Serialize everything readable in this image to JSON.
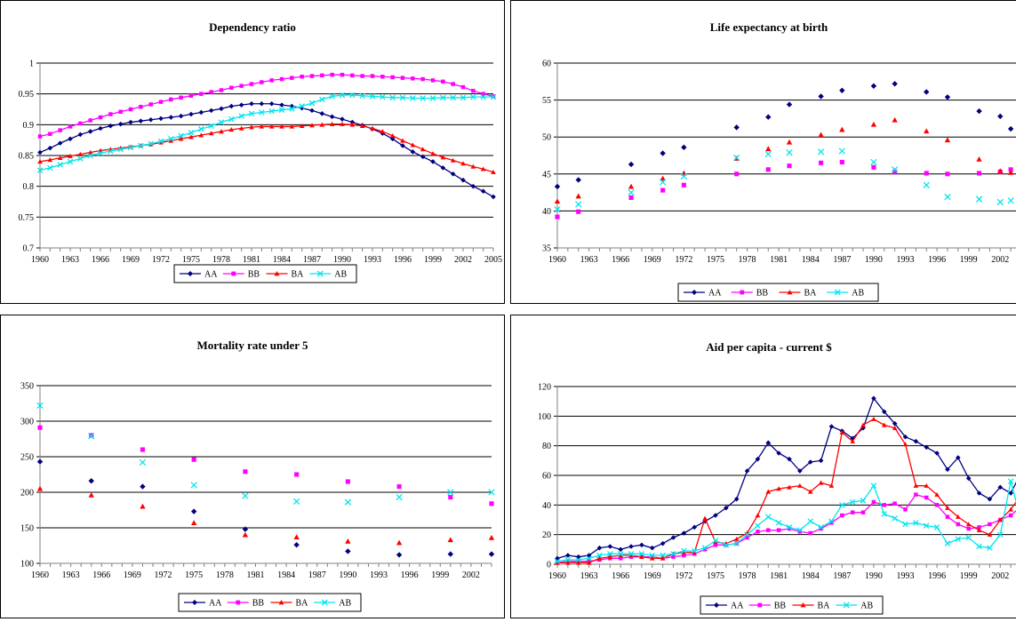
{
  "legend_items": [
    "AA",
    "BB",
    "BA",
    "AB"
  ],
  "series_colors": {
    "AA": "#000080",
    "BB": "#ff00ff",
    "BA": "#ff0000",
    "AB": "#00e5ee"
  },
  "series_markers": {
    "AA": "diamond",
    "BB": "square",
    "BA": "triangle",
    "AB": "x"
  },
  "chart_data": [
    {
      "type": "line",
      "title": "Dependency ratio",
      "xlabel": "",
      "ylabel": "",
      "xlim": [
        1960,
        2005
      ],
      "ylim": [
        0.7,
        1.0
      ],
      "yticks": [
        0.7,
        0.75,
        0.8,
        0.85,
        0.9,
        0.95,
        1
      ],
      "ytick_labels": [
        "0.7",
        "0.75",
        "0.8",
        "0.85",
        "0.9",
        "0.95",
        "1"
      ],
      "xticks": [
        1960,
        1963,
        1966,
        1969,
        1972,
        1975,
        1978,
        1981,
        1984,
        1987,
        1990,
        1993,
        1996,
        1999,
        2002,
        2005
      ],
      "grid": "horizontal",
      "legend": "bottom",
      "x": [
        1960,
        1961,
        1962,
        1963,
        1964,
        1965,
        1966,
        1967,
        1968,
        1969,
        1970,
        1971,
        1972,
        1973,
        1974,
        1975,
        1976,
        1977,
        1978,
        1979,
        1980,
        1981,
        1982,
        1983,
        1984,
        1985,
        1986,
        1987,
        1988,
        1989,
        1990,
        1991,
        1992,
        1993,
        1994,
        1995,
        1996,
        1997,
        1998,
        1999,
        2000,
        2001,
        2002,
        2003,
        2004,
        2005
      ],
      "series": [
        {
          "name": "AA",
          "values": [
            0.855,
            0.862,
            0.87,
            0.877,
            0.884,
            0.889,
            0.894,
            0.898,
            0.901,
            0.904,
            0.906,
            0.908,
            0.91,
            0.912,
            0.914,
            0.917,
            0.92,
            0.923,
            0.926,
            0.93,
            0.932,
            0.934,
            0.934,
            0.934,
            0.932,
            0.93,
            0.927,
            0.923,
            0.918,
            0.913,
            0.909,
            0.904,
            0.899,
            0.893,
            0.886,
            0.877,
            0.866,
            0.856,
            0.848,
            0.84,
            0.83,
            0.82,
            0.81,
            0.8,
            0.792,
            0.783
          ]
        },
        {
          "name": "BB",
          "values": [
            0.881,
            0.885,
            0.891,
            0.897,
            0.902,
            0.907,
            0.912,
            0.917,
            0.921,
            0.925,
            0.929,
            0.933,
            0.937,
            0.941,
            0.944,
            0.947,
            0.95,
            0.953,
            0.956,
            0.96,
            0.963,
            0.966,
            0.969,
            0.972,
            0.974,
            0.976,
            0.978,
            0.979,
            0.98,
            0.981,
            0.981,
            0.98,
            0.979,
            0.979,
            0.978,
            0.977,
            0.976,
            0.975,
            0.974,
            0.972,
            0.97,
            0.966,
            0.961,
            0.955,
            0.95,
            0.946
          ]
        },
        {
          "name": "BA",
          "values": [
            0.84,
            0.843,
            0.846,
            0.849,
            0.852,
            0.855,
            0.858,
            0.86,
            0.862,
            0.864,
            0.866,
            0.868,
            0.871,
            0.874,
            0.877,
            0.88,
            0.883,
            0.886,
            0.889,
            0.892,
            0.894,
            0.896,
            0.897,
            0.897,
            0.897,
            0.897,
            0.898,
            0.899,
            0.9,
            0.901,
            0.901,
            0.9,
            0.898,
            0.894,
            0.889,
            0.882,
            0.874,
            0.867,
            0.86,
            0.853,
            0.847,
            0.842,
            0.837,
            0.832,
            0.828,
            0.823
          ]
        },
        {
          "name": "AB",
          "values": [
            0.826,
            0.83,
            0.835,
            0.84,
            0.845,
            0.85,
            0.854,
            0.857,
            0.86,
            0.863,
            0.866,
            0.869,
            0.873,
            0.877,
            0.882,
            0.887,
            0.893,
            0.898,
            0.904,
            0.909,
            0.914,
            0.918,
            0.92,
            0.922,
            0.924,
            0.926,
            0.93,
            0.935,
            0.941,
            0.946,
            0.948,
            0.948,
            0.947,
            0.946,
            0.945,
            0.944,
            0.944,
            0.943,
            0.943,
            0.943,
            0.944,
            0.944,
            0.944,
            0.945,
            0.945,
            0.945
          ]
        }
      ]
    },
    {
      "type": "scatter",
      "title": "Life expectancy at birth",
      "xlabel": "",
      "ylabel": "",
      "xlim": [
        1960,
        2004
      ],
      "ylim": [
        35,
        60
      ],
      "yticks": [
        35,
        40,
        45,
        50,
        55,
        60
      ],
      "ytick_labels": [
        "35",
        "40",
        "45",
        "50",
        "55",
        "60"
      ],
      "xticks": [
        1960,
        1963,
        1966,
        1969,
        1972,
        1975,
        1978,
        1981,
        1984,
        1987,
        1990,
        1993,
        1996,
        1999,
        2002
      ],
      "grid": "horizontal",
      "legend": "bottom",
      "x": [
        1960,
        1962,
        1967,
        1970,
        1972,
        1977,
        1980,
        1982,
        1985,
        1987,
        1990,
        1992,
        1995,
        1997,
        2000,
        2002,
        2003,
        2004
      ],
      "series": [
        {
          "name": "AA",
          "values": [
            43.3,
            44.2,
            46.3,
            47.8,
            48.6,
            51.3,
            52.7,
            54.4,
            55.5,
            56.3,
            56.9,
            57.2,
            56.1,
            55.4,
            53.5,
            52.8,
            51.1,
            51.7
          ]
        },
        {
          "name": "BB",
          "values": [
            39.2,
            39.9,
            41.8,
            42.8,
            43.5,
            45.0,
            45.6,
            46.1,
            46.5,
            46.6,
            45.9,
            45.3,
            45.1,
            45.0,
            45.1,
            45.3,
            45.6,
            45.8
          ]
        },
        {
          "name": "BA",
          "values": [
            41.3,
            42.0,
            43.3,
            44.4,
            45.1,
            47.1,
            48.4,
            49.3,
            50.3,
            51.0,
            51.7,
            52.3,
            50.8,
            49.6,
            47.0,
            45.4,
            45.2,
            44.9
          ]
        },
        {
          "name": "AB",
          "values": [
            40.2,
            40.9,
            42.5,
            43.9,
            44.7,
            47.2,
            47.7,
            47.9,
            48.0,
            48.1,
            46.6,
            45.6,
            43.5,
            41.9,
            41.6,
            41.2,
            41.4,
            41.5
          ]
        }
      ]
    },
    {
      "type": "scatter",
      "title": "Mortality rate under 5",
      "xlabel": "",
      "ylabel": "",
      "xlim": [
        1960,
        2004
      ],
      "ylim": [
        100,
        350
      ],
      "yticks": [
        100,
        150,
        200,
        250,
        300,
        350
      ],
      "ytick_labels": [
        "100",
        "150",
        "200",
        "250",
        "300",
        "350"
      ],
      "xticks": [
        1960,
        1963,
        1966,
        1969,
        1972,
        1975,
        1978,
        1981,
        1984,
        1987,
        1990,
        1993,
        1996,
        1999,
        2002
      ],
      "grid": "horizontal",
      "legend": "bottom",
      "x": [
        1960,
        1965,
        1970,
        1975,
        1980,
        1985,
        1990,
        1995,
        2000,
        2004
      ],
      "series": [
        {
          "name": "AA",
          "values": [
            243,
            216,
            208,
            173,
            148,
            126,
            117,
            112,
            113,
            113
          ]
        },
        {
          "name": "BB",
          "values": [
            291,
            280,
            260,
            246,
            229,
            225,
            215,
            208,
            193,
            184
          ]
        },
        {
          "name": "BA",
          "values": [
            205,
            196,
            180,
            157,
            140,
            137,
            131,
            129,
            133,
            136
          ]
        },
        {
          "name": "AB",
          "values": [
            322,
            279,
            242,
            210,
            195,
            187,
            186,
            193,
            200,
            200
          ]
        }
      ]
    },
    {
      "type": "line",
      "title": "Aid per capita - current $",
      "xlabel": "",
      "ylabel": "",
      "xlim": [
        1960,
        2004
      ],
      "ylim": [
        0,
        120
      ],
      "yticks": [
        0,
        20,
        40,
        60,
        80,
        100,
        120
      ],
      "ytick_labels": [
        "0",
        "20",
        "40",
        "60",
        "80",
        "100",
        "120"
      ],
      "xticks": [
        1960,
        1963,
        1966,
        1969,
        1972,
        1975,
        1978,
        1981,
        1984,
        1987,
        1990,
        1993,
        1996,
        1999,
        2002
      ],
      "grid": "horizontal",
      "legend": "bottom",
      "x": [
        1960,
        1961,
        1962,
        1963,
        1964,
        1965,
        1966,
        1967,
        1968,
        1969,
        1970,
        1971,
        1972,
        1973,
        1974,
        1975,
        1976,
        1977,
        1978,
        1979,
        1980,
        1981,
        1982,
        1983,
        1984,
        1985,
        1986,
        1987,
        1988,
        1989,
        1990,
        1991,
        1992,
        1993,
        1994,
        1995,
        1996,
        1997,
        1998,
        1999,
        2000,
        2001,
        2002,
        2003,
        2004
      ],
      "series": [
        {
          "name": "AA",
          "values": [
            4,
            6,
            5,
            6,
            11,
            12,
            10,
            12,
            13,
            11,
            14,
            18,
            21,
            25,
            29,
            33,
            38,
            44,
            63,
            71,
            82,
            75,
            71,
            63,
            69,
            70,
            93,
            90,
            85,
            92,
            112,
            103,
            95,
            86,
            83,
            79,
            75,
            64,
            72,
            58,
            48,
            44,
            52,
            48,
            62
          ]
        },
        {
          "name": "BB",
          "values": [
            1,
            2,
            2,
            2,
            3,
            4,
            4,
            5,
            5,
            5,
            4,
            5,
            6,
            7,
            10,
            13,
            13,
            14,
            18,
            22,
            23,
            23,
            24,
            22,
            21,
            24,
            28,
            33,
            35,
            35,
            42,
            40,
            41,
            37,
            47,
            45,
            40,
            32,
            27,
            24,
            25,
            27,
            30,
            33,
            39
          ]
        },
        {
          "name": "BA",
          "values": [
            1,
            1,
            1,
            1,
            4,
            5,
            6,
            6,
            5,
            4,
            4,
            7,
            8,
            8,
            31,
            15,
            14,
            17,
            21,
            33,
            49,
            51,
            52,
            53,
            49,
            55,
            53,
            89,
            83,
            94,
            98,
            94,
            92,
            81,
            53,
            53,
            47,
            38,
            32,
            27,
            23,
            20,
            30,
            37,
            47
          ]
        },
        {
          "name": "AB",
          "values": [
            2,
            3,
            3,
            4,
            6,
            7,
            7,
            7,
            7,
            6,
            6,
            7,
            9,
            9,
            11,
            16,
            13,
            14,
            20,
            26,
            32,
            28,
            25,
            23,
            29,
            25,
            29,
            40,
            42,
            43,
            53,
            34,
            31,
            27,
            28,
            26,
            25,
            14,
            17,
            18,
            12,
            11,
            20,
            56,
            29
          ]
        }
      ]
    }
  ]
}
